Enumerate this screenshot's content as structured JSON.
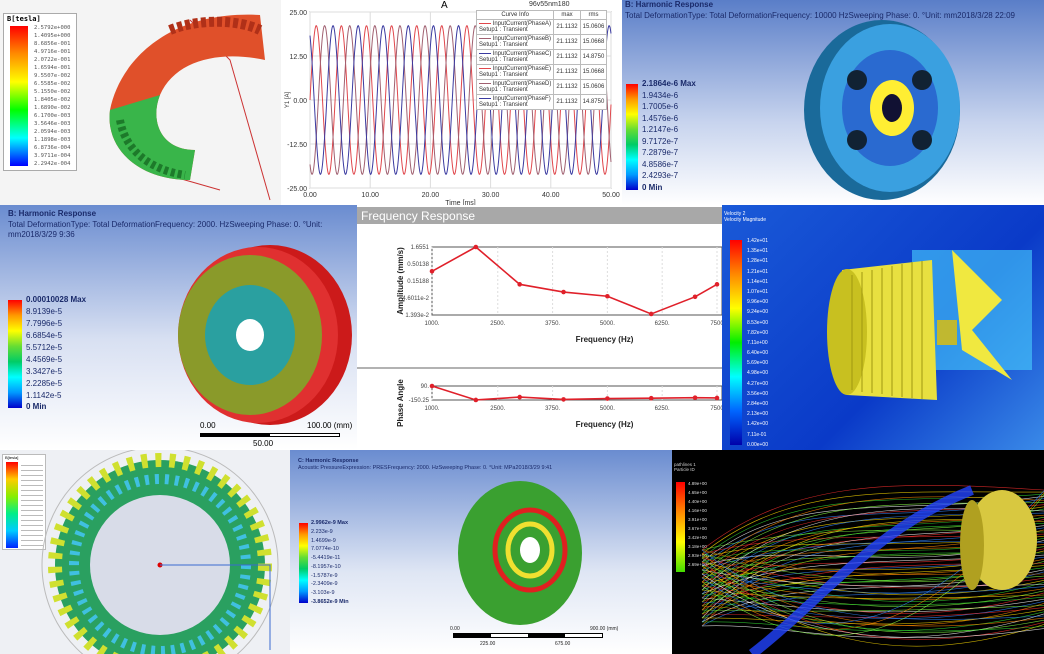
{
  "panel1": {
    "legend_title": "B[tesla]",
    "legend_values": [
      "2.5792e+000",
      "1.4095e+000",
      "8.6856e-001",
      "4.9716e-001",
      "2.0722e-001",
      "1.6594e-001",
      "9.5507e-002",
      "6.5585e-002",
      "5.1550e-002",
      "1.8405e-002",
      "1.6890e-002",
      "6.1700e-003",
      "3.5646e-003",
      "2.0594e-003",
      "1.1898e-003",
      "6.8736e-004",
      "3.9711e-004",
      "2.2942e-004"
    ]
  },
  "panel2": {
    "title": "A",
    "project_label": "96v55nm180",
    "ylabel": "Y1 [A]",
    "xlabel": "Time [ms]",
    "legend_header": [
      "Curve Info",
      "max",
      "rms"
    ]
  },
  "chart_data": [
    {
      "type": "line",
      "title": "A",
      "xlabel": "Time [ms]",
      "ylabel": "Y1 [A]",
      "xlim": [
        0,
        50
      ],
      "ylim": [
        -25,
        25
      ],
      "x_ticks": [
        "0.00",
        "10.00",
        "20.00",
        "30.00",
        "40.00",
        "50.00"
      ],
      "y_ticks": [
        "25.00",
        "12.50",
        "0.00",
        "-12.50",
        "-25.00"
      ],
      "grid": true,
      "legend_placement": "top-right",
      "amplitude": 21.1132,
      "period_ms": 4.17,
      "series": [
        {
          "name": "InputCurrent(PhaseA)",
          "setup": "Setup1 : Transient",
          "max": "21.1132",
          "rms": "15.0606",
          "color": "#e0474c",
          "phase_deg": 0
        },
        {
          "name": "InputCurrent(PhaseB)",
          "setup": "Setup1 : Transient",
          "max": "21.1132",
          "rms": "15.0668",
          "color": "#a06070",
          "phase_deg": 120
        },
        {
          "name": "InputCurrent(PhaseC)",
          "setup": "Setup1 : Transient",
          "max": "21.1132",
          "rms": "14.8750",
          "color": "#3a3aa0",
          "phase_deg": 240
        },
        {
          "name": "InputCurrent(PhaseE)",
          "setup": "Setup1 : Transient",
          "max": "21.1132",
          "rms": "15.0668",
          "color": "#e0474c",
          "phase_deg": 0
        },
        {
          "name": "InputCurrent(PhaseD)",
          "setup": "Setup1 : Transient",
          "max": "21.1132",
          "rms": "15.0606",
          "color": "#a06070",
          "phase_deg": 120
        },
        {
          "name": "InputCurrent(PhaseF)",
          "setup": "Setup1 : Transient",
          "max": "21.1132",
          "rms": "14.8750",
          "color": "#3a3aa0",
          "phase_deg": 240
        }
      ]
    },
    {
      "type": "line",
      "title": "Frequency Response",
      "xlabel": "Frequency (Hz)",
      "ylabel": "Amplitude (mm/s)",
      "y_scale": "log",
      "xlim": [
        1000,
        7500
      ],
      "ylim": [
        0.01393,
        1.6551
      ],
      "x_ticks": [
        "1000.",
        "2500.",
        "3750.",
        "5000.",
        "6250.",
        "7500"
      ],
      "y_ticks": [
        "1.6551",
        "0.50138",
        "0.15188",
        "4.6011e-2",
        "1.393e-2"
      ],
      "grid": true,
      "color": "#e0202a",
      "x": [
        1000,
        2000,
        3000,
        4000,
        5000,
        6000,
        7000,
        7500
      ],
      "y": [
        0.3,
        1.6551,
        0.12,
        0.07,
        0.052,
        0.015,
        0.05,
        0.12
      ]
    },
    {
      "type": "line",
      "xlabel": "Frequency (Hz)",
      "ylabel": "Phase Angle",
      "xlim": [
        1000,
        7500
      ],
      "ylim": [
        -150.25,
        90
      ],
      "x_ticks": [
        "1000.",
        "2500.",
        "3750.",
        "5000.",
        "6250.",
        "7500"
      ],
      "y_ticks": [
        "90.",
        "-150.25"
      ],
      "color": "#e0202a",
      "x": [
        1000,
        2000,
        3000,
        4000,
        5000,
        6000,
        7000,
        7500
      ],
      "y": [
        90,
        -150,
        -100,
        -140,
        -125,
        -120,
        -110,
        -115
      ]
    }
  ],
  "panel3": {
    "title": "B: Harmonic Response",
    "lines": [
      "Total Deformation",
      "Type: Total Deformation",
      "Frequency: 10000 Hz",
      "Sweeping Phase: 0. °",
      "Unit: mm",
      "2018/3/28 22:09"
    ],
    "legend_values": [
      "2.1864e-6 Max",
      "1.9434e-6",
      "1.7005e-6",
      "1.4576e-6",
      "1.2147e-6",
      "9.7172e-7",
      "7.2879e-7",
      "4.8586e-7",
      "2.4293e-7",
      "0 Min"
    ]
  },
  "panel4": {
    "title": "B: Harmonic Response",
    "lines": [
      "Total Deformation",
      "Type: Total Deformation",
      "Frequency: 2000. Hz",
      "Sweeping Phase: 0. °",
      "Unit: mm",
      "2018/3/29 9:36"
    ],
    "legend_values": [
      "0.00010028 Max",
      "8.9139e-5",
      "7.7996e-5",
      "6.6854e-5",
      "5.5712e-5",
      "4.4569e-5",
      "3.3427e-5",
      "2.2285e-5",
      "1.1142e-5",
      "0 Min"
    ],
    "scale_labels": [
      "0.00",
      "100.00 (mm)",
      "50.00"
    ]
  },
  "panel5": {
    "header": "Frequency Response"
  },
  "panel6": {
    "legend_title": [
      "Velocity 2",
      "Velocity Magnitude"
    ],
    "legend_values": [
      "1.42e+01",
      "1.35e+01",
      "1.28e+01",
      "1.21e+01",
      "1.14e+01",
      "1.07e+01",
      "9.96e+00",
      "9.24e+00",
      "8.53e+00",
      "7.82e+00",
      "7.11e+00",
      "6.40e+00",
      "5.69e+00",
      "4.98e+00",
      "4.27e+00",
      "3.56e+00",
      "2.84e+00",
      "2.13e+00",
      "1.42e+00",
      "7.11e-01",
      "0.00e+00"
    ]
  },
  "panel7": {
    "legend_title": "B[tesla]"
  },
  "panel8": {
    "title": "C: Harmonic Response",
    "lines": [
      "Acoustic Pressure",
      "Expression: PRES",
      "Frequency: 2000. Hz",
      "Sweeping Phase: 0. °",
      "Unit: MPa",
      "2018/3/29 9:41"
    ],
    "legend_values": [
      "2.9962e-9 Max",
      "2.233e-9",
      "1.4699e-9",
      "7.0774e-10",
      "-5.4419e-11",
      "-8.1957e-10",
      "-1.5787e-9",
      "-2.3409e-9",
      "-3.103e-9",
      "-3.8652e-9 Min"
    ],
    "scale_labels": [
      "0.00",
      "900.00 (mm)",
      "225.00",
      "675.00"
    ]
  },
  "panel9": {
    "legend_title": [
      "pathlines 1",
      "Particle ID"
    ],
    "legend_values": [
      "4.89e+00",
      "4.65e+00",
      "4.40e+00",
      "4.16e+00",
      "3.91e+00",
      "3.67e+00",
      "3.42e+00",
      "3.18e+00",
      "2.93e+00",
      "2.69e+00"
    ]
  },
  "colors": {
    "rainbow": [
      "#ff0000",
      "#ff8c00",
      "#ffff00",
      "#00ff00",
      "#00ffff",
      "#0000ff"
    ],
    "ansys_bg_top": "#5a7ec8",
    "ansys_bg_bottom": "#ffffff",
    "freq_header": "#a8a8a8",
    "curve_red": "#e0474c",
    "curve_blue": "#3a3aa0"
  }
}
